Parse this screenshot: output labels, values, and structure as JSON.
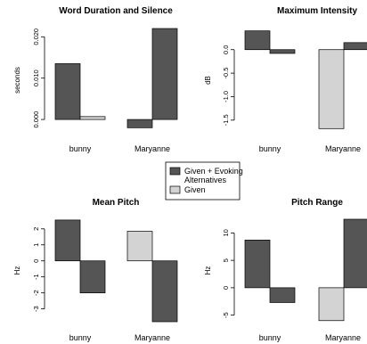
{
  "colors": {
    "dark": "#555555",
    "light": "#d3d3d3",
    "stroke": "#000000"
  },
  "legend": {
    "entries": [
      {
        "name": "Given + Evoking Alternatives",
        "lines": [
          "Given + Evoking",
          "Alternatives"
        ],
        "color": "#555555"
      },
      {
        "name": "Given",
        "lines": [
          "Given"
        ],
        "color": "#d3d3d3"
      }
    ]
  },
  "chart_data": [
    {
      "type": "bar",
      "title": "Word Duration and Silence",
      "ylabel": "seconds",
      "categories": [
        "bunny",
        "Maryanne"
      ],
      "ylim": [
        -0.003,
        0.022
      ],
      "yticks": [
        0.0,
        0.01,
        0.02
      ],
      "ytick_labels": [
        "0.000",
        "0.010",
        "0.020"
      ],
      "series": [
        {
          "values": [
            0.0135,
            -0.002
          ],
          "colors": [
            "#555555",
            "#555555"
          ]
        },
        {
          "values": [
            0.0007,
            0.022
          ],
          "colors": [
            "#d3d3d3",
            "#555555"
          ]
        }
      ]
    },
    {
      "type": "bar",
      "title": "Maximum Intensity",
      "ylabel": "dB",
      "categories": [
        "bunny",
        "Maryanne"
      ],
      "ylim": [
        -1.75,
        0.45
      ],
      "yticks": [
        0.0,
        -0.5,
        -1.0,
        -1.5
      ],
      "ytick_labels": [
        "0.0",
        "-0.5",
        "-1.0",
        "-1.5"
      ],
      "series": [
        {
          "values": [
            0.4,
            -1.68
          ],
          "colors": [
            "#555555",
            "#d3d3d3"
          ]
        },
        {
          "values": [
            -0.08,
            0.15
          ],
          "colors": [
            "#555555",
            "#555555"
          ]
        }
      ]
    },
    {
      "type": "bar",
      "title": "Mean Pitch",
      "ylabel": "Hz",
      "categories": [
        "bunny",
        "Maryanne"
      ],
      "ylim": [
        -3.8,
        2.6
      ],
      "yticks": [
        2,
        1,
        0,
        -1,
        -2,
        -3
      ],
      "ytick_labels": [
        "2",
        "1",
        "0",
        "-1",
        "-2",
        "-3"
      ],
      "series": [
        {
          "values": [
            2.55,
            1.85
          ],
          "colors": [
            "#555555",
            "#d3d3d3"
          ]
        },
        {
          "values": [
            -2.0,
            -3.8
          ],
          "colors": [
            "#555555",
            "#555555"
          ]
        }
      ]
    },
    {
      "type": "bar",
      "title": "Pitch Range",
      "ylabel": "Hz",
      "categories": [
        "bunny",
        "Maryanne"
      ],
      "ylim": [
        -6.2,
        12.5
      ],
      "yticks": [
        10,
        5,
        0,
        -5
      ],
      "ytick_labels": [
        "10",
        "5",
        "0",
        "-5"
      ],
      "series": [
        {
          "values": [
            8.7,
            -6.0
          ],
          "colors": [
            "#555555",
            "#d3d3d3"
          ]
        },
        {
          "values": [
            -2.7,
            12.5
          ],
          "colors": [
            "#555555",
            "#555555"
          ]
        }
      ]
    }
  ]
}
